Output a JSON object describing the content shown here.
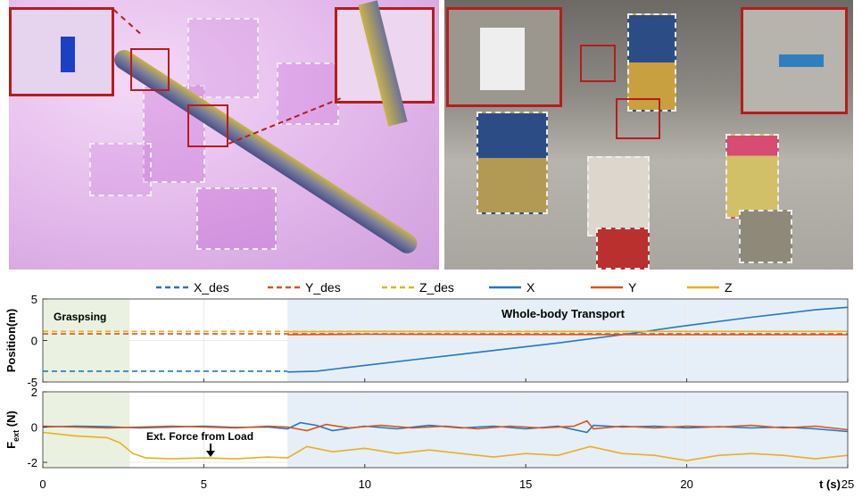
{
  "legend": {
    "items": [
      {
        "label": "X_des",
        "color": "#1f77c8",
        "style": "dashed"
      },
      {
        "label": "Y_des",
        "color": "#d9541a",
        "style": "dashed"
      },
      {
        "label": "Z_des",
        "color": "#e8b020",
        "style": "dashed"
      },
      {
        "label": "X",
        "color": "#1f77c8",
        "style": "solid"
      },
      {
        "label": "Y",
        "color": "#d9541a",
        "style": "solid"
      },
      {
        "label": "Z",
        "color": "#e8b020",
        "style": "solid"
      }
    ]
  },
  "phases": {
    "grasping_label": "Graspsing",
    "transport_label": "Whole-body Transport"
  },
  "annotation": {
    "load_force": "Ext. Force from Load"
  },
  "chart_data": [
    {
      "type": "line",
      "ylabel": "Position(m)",
      "xlabel": "t (s)",
      "xlim": [
        0,
        25
      ],
      "ylim": [
        -5,
        5
      ],
      "yticks": [
        5,
        0,
        -5
      ],
      "xticks": [
        0,
        5,
        10,
        15,
        20,
        25
      ],
      "grid": true,
      "shaded_regions": [
        {
          "label": "Graspsing",
          "x": [
            0,
            2.7
          ],
          "color": "#eaf1e0"
        },
        {
          "label": "Whole-body Transport",
          "x": [
            7.6,
            25
          ],
          "color": "#e6eef7"
        }
      ],
      "series": [
        {
          "name": "X_des",
          "style": "dashed",
          "x": [
            0,
            7.6
          ],
          "y": [
            -3.7,
            -3.7
          ]
        },
        {
          "name": "Y_des",
          "style": "dashed",
          "x": [
            0,
            25
          ],
          "y": [
            0.8,
            0.8
          ]
        },
        {
          "name": "Z_des",
          "style": "dashed",
          "x": [
            0,
            25
          ],
          "y": [
            1.1,
            1.1
          ]
        },
        {
          "name": "X",
          "style": "solid",
          "x": [
            7.6,
            8.5,
            10,
            12,
            14,
            16,
            18,
            20,
            22,
            24,
            25
          ],
          "y": [
            -3.8,
            -3.7,
            -3.0,
            -2.1,
            -1.2,
            -0.3,
            0.7,
            1.8,
            2.8,
            3.7,
            4.0
          ]
        },
        {
          "name": "Y",
          "style": "solid",
          "x": [
            7.6,
            10,
            15,
            20,
            25
          ],
          "y": [
            0.7,
            0.75,
            0.72,
            0.7,
            0.7
          ]
        },
        {
          "name": "Z",
          "style": "solid",
          "x": [
            7.6,
            10,
            15,
            20,
            25
          ],
          "y": [
            1.05,
            1.1,
            1.08,
            1.1,
            1.1
          ]
        }
      ]
    },
    {
      "type": "line",
      "ylabel": "F_ext (N)",
      "xlabel": "t (s)",
      "xlim": [
        0,
        25
      ],
      "ylim": [
        -2.3,
        2
      ],
      "yticks": [
        2,
        0,
        -2
      ],
      "xticks": [
        0,
        5,
        10,
        15,
        20,
        25
      ],
      "grid": true,
      "series": [
        {
          "name": "X",
          "style": "solid",
          "x": [
            0,
            1,
            2,
            3,
            4,
            5,
            6,
            7,
            7.6,
            8,
            8.5,
            9,
            10,
            11,
            12,
            13,
            14,
            15,
            16,
            16.9,
            17.1,
            18,
            19,
            20,
            21,
            22,
            23,
            24,
            25
          ],
          "y": [
            0.0,
            0.05,
            0.02,
            -0.05,
            0.0,
            0.05,
            -0.02,
            0.0,
            -0.1,
            0.25,
            0.1,
            -0.2,
            0.05,
            -0.1,
            0.1,
            -0.05,
            0.05,
            -0.1,
            0.05,
            -0.3,
            0.1,
            0.0,
            0.05,
            -0.05,
            0.02,
            -0.05,
            0.0,
            -0.1,
            -0.25
          ]
        },
        {
          "name": "Y",
          "style": "solid",
          "x": [
            0,
            1,
            2,
            3,
            4,
            5,
            6,
            7,
            7.6,
            8.2,
            8.8,
            9.5,
            10.5,
            11.5,
            12.5,
            13.5,
            14.5,
            15.5,
            16.5,
            16.9,
            17.1,
            18,
            19,
            20,
            21,
            22,
            23,
            24,
            25
          ],
          "y": [
            0.05,
            0.0,
            -0.05,
            0.0,
            0.05,
            0.0,
            -0.05,
            0.05,
            0.0,
            -0.2,
            0.15,
            -0.05,
            0.1,
            -0.05,
            0.05,
            -0.1,
            0.05,
            -0.05,
            0.05,
            0.35,
            -0.1,
            0.05,
            -0.05,
            0.05,
            0.0,
            0.1,
            -0.05,
            0.05,
            -0.15
          ]
        },
        {
          "name": "Z",
          "style": "solid",
          "x": [
            0,
            1,
            2,
            2.4,
            2.8,
            3.2,
            4,
            5,
            6,
            7,
            7.6,
            8.2,
            9,
            10,
            11,
            12,
            13,
            14,
            15,
            16,
            17,
            18,
            19,
            20,
            21,
            22,
            23,
            24,
            25
          ],
          "y": [
            -0.3,
            -0.5,
            -0.6,
            -0.9,
            -1.5,
            -1.75,
            -1.8,
            -1.75,
            -1.8,
            -1.7,
            -1.75,
            -1.1,
            -1.4,
            -1.2,
            -1.5,
            -1.3,
            -1.5,
            -1.7,
            -1.5,
            -1.6,
            -1.1,
            -1.5,
            -1.6,
            -1.9,
            -1.6,
            -1.5,
            -1.6,
            -1.8,
            -1.6
          ]
        }
      ]
    }
  ]
}
